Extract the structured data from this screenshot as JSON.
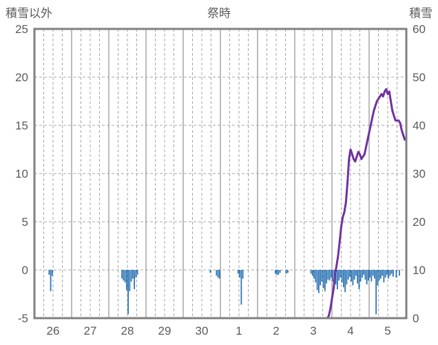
{
  "chart_data": {
    "type": "bar+line",
    "title": "祭時",
    "left_axis": {
      "label": "積雪以外",
      "min": -5,
      "max": 25,
      "ticks": [
        -5,
        0,
        5,
        10,
        15,
        20,
        25
      ]
    },
    "right_axis": {
      "label": "積雪",
      "min": 0,
      "max": 60,
      "ticks": [
        0,
        10,
        20,
        30,
        40,
        50,
        60
      ]
    },
    "x_axis": {
      "day_labels": [
        "26",
        "27",
        "28",
        "29",
        "30",
        "1",
        "2",
        "3",
        "4",
        "5"
      ],
      "hours_per_day": 24,
      "total_hours": 240,
      "solid_grid_every_hours": 24,
      "dashed_grid_every_hours": 6
    },
    "grid_color": "#a6a6a6",
    "frame_color": "#808080",
    "text_color": "#595959",
    "series": [
      {
        "name": "precipitation-bars",
        "type": "bar",
        "axis": "left",
        "color": "#2e75b6",
        "points": [
          [
            9,
            -0.5
          ],
          [
            10,
            -2.2
          ],
          [
            11,
            -0.6
          ],
          [
            56,
            -0.9
          ],
          [
            57,
            -1.1
          ],
          [
            58,
            -1.3
          ],
          [
            59,
            -2.1
          ],
          [
            60,
            -4.6
          ],
          [
            61,
            -2.2
          ],
          [
            62,
            -1.2
          ],
          [
            63,
            -0.9
          ],
          [
            64,
            -2.0
          ],
          [
            65,
            -0.8
          ],
          [
            66,
            -0.5
          ],
          [
            113,
            -0.3
          ],
          [
            117,
            -0.6
          ],
          [
            118,
            -0.8
          ],
          [
            119,
            -0.9
          ],
          [
            131,
            -0.4
          ],
          [
            132,
            -0.8
          ],
          [
            133,
            -3.6
          ],
          [
            134,
            -0.9
          ],
          [
            155,
            -0.4
          ],
          [
            156,
            -0.5
          ],
          [
            157,
            -0.5
          ],
          [
            158,
            -0.3
          ],
          [
            162,
            -0.4
          ],
          [
            163,
            -0.3
          ],
          [
            178,
            -0.4
          ],
          [
            179,
            -0.6
          ],
          [
            180,
            -0.9
          ],
          [
            181,
            -1.3
          ],
          [
            182,
            -2.1
          ],
          [
            183,
            -2.4
          ],
          [
            184,
            -1.6
          ],
          [
            185,
            -1.2
          ],
          [
            186,
            -1.9
          ],
          [
            187,
            -2.2
          ],
          [
            188,
            -1.4
          ],
          [
            189,
            -1.0
          ],
          [
            190,
            -1.1
          ],
          [
            191,
            -0.8
          ],
          [
            192,
            -1.2
          ],
          [
            193,
            -0.9
          ],
          [
            194,
            -1.5
          ],
          [
            195,
            -2.0
          ],
          [
            196,
            -1.1
          ],
          [
            197,
            -0.8
          ],
          [
            198,
            -1.3
          ],
          [
            199,
            -1.8
          ],
          [
            200,
            -2.3
          ],
          [
            201,
            -1.5
          ],
          [
            202,
            -1.0
          ],
          [
            203,
            -0.7
          ],
          [
            204,
            -1.2
          ],
          [
            205,
            -1.6
          ],
          [
            206,
            -1.0
          ],
          [
            207,
            -0.6
          ],
          [
            208,
            -1.4
          ],
          [
            209,
            -2.0
          ],
          [
            210,
            -1.2
          ],
          [
            211,
            -0.8
          ],
          [
            212,
            -0.5
          ],
          [
            213,
            -1.0
          ],
          [
            214,
            -1.5
          ],
          [
            215,
            -1.1
          ],
          [
            216,
            -0.8
          ],
          [
            217,
            -1.2
          ],
          [
            218,
            -0.6
          ],
          [
            219,
            -0.9
          ],
          [
            220,
            -4.6
          ],
          [
            221,
            -1.6
          ],
          [
            222,
            -1.1
          ],
          [
            223,
            -0.9
          ],
          [
            224,
            -0.6
          ],
          [
            225,
            -1.3
          ],
          [
            226,
            -0.8
          ],
          [
            227,
            -0.5
          ],
          [
            228,
            -0.9
          ],
          [
            229,
            -0.6
          ],
          [
            230,
            -0.4
          ],
          [
            231,
            -0.7
          ],
          [
            233,
            -0.8
          ],
          [
            235,
            -0.6
          ]
        ]
      },
      {
        "name": "snow-depth-line",
        "type": "line",
        "axis": "right",
        "color": "#7030a0",
        "points": [
          [
            0,
            0
          ],
          [
            189,
            0
          ],
          [
            190,
            0.5
          ],
          [
            191,
            2
          ],
          [
            192,
            4
          ],
          [
            193,
            6
          ],
          [
            194,
            9
          ],
          [
            195,
            11
          ],
          [
            196,
            13
          ],
          [
            197,
            16
          ],
          [
            198,
            19
          ],
          [
            199,
            21
          ],
          [
            200,
            22
          ],
          [
            201,
            24
          ],
          [
            202,
            28
          ],
          [
            203,
            33
          ],
          [
            204,
            35
          ],
          [
            205,
            34
          ],
          [
            206,
            33
          ],
          [
            207,
            32.5
          ],
          [
            208,
            33.5
          ],
          [
            209,
            34.5
          ],
          [
            210,
            34
          ],
          [
            211,
            33
          ],
          [
            212,
            33.5
          ],
          [
            213,
            34
          ],
          [
            214,
            35.5
          ],
          [
            215,
            37
          ],
          [
            216,
            38.5
          ],
          [
            217,
            40
          ],
          [
            218,
            41.5
          ],
          [
            219,
            43
          ],
          [
            220,
            44
          ],
          [
            221,
            45
          ],
          [
            222,
            45.5
          ],
          [
            223,
            46
          ],
          [
            224,
            46.5
          ],
          [
            225,
            46
          ],
          [
            226,
            47
          ],
          [
            227,
            47.5
          ],
          [
            228,
            46.5
          ],
          [
            229,
            47
          ],
          [
            230,
            45
          ],
          [
            231,
            43
          ],
          [
            232,
            42
          ],
          [
            233,
            41
          ],
          [
            234,
            41
          ],
          [
            235,
            41
          ],
          [
            236,
            40.5
          ],
          [
            237,
            39
          ],
          [
            238,
            38
          ],
          [
            239,
            37
          ]
        ]
      }
    ]
  }
}
